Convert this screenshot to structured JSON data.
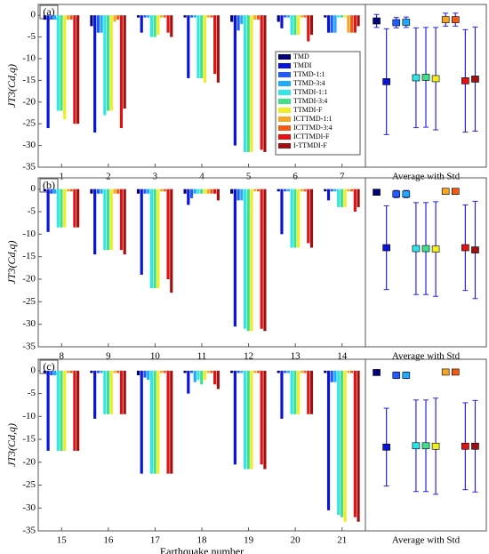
{
  "chart_data": [
    {
      "type": "bar",
      "panel_label": "(a)",
      "ylabel": "JT3(Cd,q)",
      "categories": [
        "1",
        "2",
        "3",
        "4",
        "5",
        "6",
        "7"
      ],
      "ylim": [
        -35,
        2.5
      ],
      "yticks": [
        0,
        -5,
        -10,
        -15,
        -20,
        -25,
        -30,
        -35
      ],
      "series": [
        {
          "name": "TMD",
          "color": "#00007a",
          "values": [
            -1,
            -2.5,
            -0.5,
            -0.5,
            -1.5,
            -1.5,
            -0.5
          ]
        },
        {
          "name": "TMDI",
          "color": "#0a14d8",
          "values": [
            -26,
            -27,
            -4,
            -14.5,
            -30,
            -3,
            -4
          ]
        },
        {
          "name": "TTMD-1:1",
          "color": "#1e5cff",
          "values": [
            -1,
            -4,
            -0.5,
            -0.5,
            -3.5,
            -0.5,
            -4
          ]
        },
        {
          "name": "TTMD-3:4",
          "color": "#1eaaff",
          "values": [
            -1,
            -4,
            -0.5,
            -0.5,
            -2,
            -0.5,
            -4
          ]
        },
        {
          "name": "TTMDI-1:1",
          "color": "#2ee6e6",
          "values": [
            -22,
            -23,
            -5,
            -14.5,
            -31.5,
            -4.5,
            -0.5
          ]
        },
        {
          "name": "TTMDI-3:4",
          "color": "#3ee08a",
          "values": [
            -22,
            -22,
            -5,
            -14.5,
            -31.5,
            -4.5,
            -0.5
          ]
        },
        {
          "name": "TTMDI-F",
          "color": "#eeee22",
          "values": [
            -24,
            -22,
            -4.5,
            -15.5,
            -31.5,
            -4.5,
            -0.5
          ]
        },
        {
          "name": "ICTTMD-1:1",
          "color": "#f5a623",
          "values": [
            -1,
            -1.5,
            -0.5,
            -0.5,
            -1,
            -0.5,
            -4
          ]
        },
        {
          "name": "ICTTMD-3:4",
          "color": "#f25a14",
          "values": [
            -1,
            -1,
            -0.5,
            -0.5,
            -1,
            -0.5,
            -4
          ]
        },
        {
          "name": "ICTTMDI-F",
          "color": "#e01212",
          "values": [
            -25,
            -26,
            -4,
            -13.5,
            -31,
            -6,
            -4
          ]
        },
        {
          "name": "I-TTMDI-F",
          "color": "#9e1010",
          "values": [
            -25,
            -21.5,
            -5,
            -15.5,
            -31.5,
            -4.5,
            -2.5
          ]
        }
      ],
      "average": {
        "label": "Average with Std",
        "values": [
          -1.3,
          -15.3,
          -1.7,
          -1.6,
          -14.4,
          -14.3,
          -14.6,
          -1.0,
          -1.0,
          -15.1,
          -14.7
        ],
        "std": [
          1.5,
          12.2,
          1.2,
          1.2,
          11.5,
          11.5,
          11.8,
          1.5,
          1.5,
          11.8,
          12
        ]
      }
    },
    {
      "type": "bar",
      "panel_label": "(b)",
      "ylabel": "JT3(Cd,q)",
      "categories": [
        "8",
        "9",
        "10",
        "11",
        "12",
        "13",
        "14"
      ],
      "ylim": [
        -35,
        2.5
      ],
      "yticks": [
        0,
        -5,
        -10,
        -15,
        -20,
        -25,
        -30,
        -35
      ],
      "series": [
        {
          "color": "#00007a",
          "values": [
            -0.5,
            -1,
            -1,
            -1,
            -1,
            -0.5,
            -0.5
          ]
        },
        {
          "color": "#0a14d8",
          "values": [
            -9.5,
            -14.5,
            -19,
            -3.5,
            -30.5,
            -10,
            -2.5
          ]
        },
        {
          "color": "#1e5cff",
          "values": [
            -1,
            -1,
            -1,
            -2,
            -2.5,
            -0.5,
            -0.5
          ]
        },
        {
          "color": "#1eaaff",
          "values": [
            -1,
            -1,
            -1,
            -1,
            -2.5,
            -0.5,
            -0.5
          ]
        },
        {
          "color": "#2ee6e6",
          "values": [
            -8.5,
            -13.5,
            -22,
            -1,
            -31,
            -13,
            -4
          ]
        },
        {
          "color": "#3ee08a",
          "values": [
            -8.5,
            -13.5,
            -22,
            -1,
            -31.5,
            -13,
            -4
          ]
        },
        {
          "color": "#eeee22",
          "values": [
            -8.5,
            -13.5,
            -22,
            -1,
            -31.5,
            -13,
            -4
          ]
        },
        {
          "color": "#f5a623",
          "values": [
            -0.5,
            -1,
            -0.5,
            -1,
            -0.5,
            -0.5,
            -0.5
          ]
        },
        {
          "color": "#f25a14",
          "values": [
            -0.5,
            -1,
            -0.5,
            -1,
            -0.5,
            -0.5,
            -0.5
          ]
        },
        {
          "color": "#e01212",
          "values": [
            -8.5,
            -13.5,
            -20,
            -1,
            -31,
            -12,
            -5
          ]
        },
        {
          "color": "#9e1010",
          "values": [
            -8.5,
            -14.5,
            -23,
            -2.5,
            -31.5,
            -13,
            -4
          ]
        }
      ],
      "average": {
        "label": "Average with Std",
        "values": [
          -0.7,
          -13,
          -1.1,
          -1.1,
          -13.2,
          -13.2,
          -13.3,
          -0.5,
          -0.5,
          -13,
          -13.5
        ],
        "std": [
          0.5,
          9.3,
          0.8,
          0.8,
          10.2,
          10.2,
          10.5,
          0.3,
          0.3,
          9.5,
          10.8
        ]
      }
    },
    {
      "type": "bar",
      "panel_label": "(c)",
      "ylabel": "JT3(Cd,q)",
      "xlabel": "Earthquake number",
      "categories": [
        "15",
        "16",
        "17",
        "18",
        "19",
        "20",
        "21"
      ],
      "ylim": [
        -35,
        2.5
      ],
      "yticks": [
        0,
        -5,
        -10,
        -15,
        -20,
        -25,
        -30,
        -35
      ],
      "series": [
        {
          "color": "#00007a",
          "values": [
            -0.5,
            -0.5,
            -1,
            -0.5,
            -0.5,
            -0.5,
            -0.5
          ]
        },
        {
          "color": "#0a14d8",
          "values": [
            -17.5,
            -10.5,
            -22.5,
            -5,
            -20.5,
            -10.5,
            -30.5
          ]
        },
        {
          "color": "#1e5cff",
          "values": [
            -1,
            -0.5,
            -1.5,
            -0.5,
            -0.5,
            -0.5,
            -2.5
          ]
        },
        {
          "color": "#1eaaff",
          "values": [
            -1,
            -0.5,
            -2,
            -2.5,
            -0.5,
            -0.5,
            -2.5
          ]
        },
        {
          "color": "#2ee6e6",
          "values": [
            -17.5,
            -9.5,
            -22.5,
            -2,
            -21.5,
            -9.5,
            -31.5
          ]
        },
        {
          "color": "#3ee08a",
          "values": [
            -17.5,
            -9.5,
            -22.5,
            -3,
            -21.5,
            -9.5,
            -32
          ]
        },
        {
          "color": "#eeee22",
          "values": [
            -17.5,
            -9.5,
            -22.5,
            -2,
            -21.5,
            -9.5,
            -33
          ]
        },
        {
          "color": "#f5a623",
          "values": [
            -0.5,
            -0.5,
            -0.5,
            -0.5,
            -0.5,
            -0.5,
            -0.5
          ]
        },
        {
          "color": "#f25a14",
          "values": [
            -0.5,
            -0.5,
            -0.5,
            -0.5,
            -0.5,
            -0.5,
            -0.5
          ]
        },
        {
          "color": "#e01212",
          "values": [
            -17.5,
            -9.5,
            -22.5,
            -3,
            -20.5,
            -9.5,
            -32
          ]
        },
        {
          "color": "#9e1010",
          "values": [
            -17.5,
            -9.5,
            -22.5,
            -4,
            -21.5,
            -9.5,
            -33
          ]
        }
      ],
      "average": {
        "label": "Average with Std",
        "values": [
          -0.4,
          -16.7,
          -1,
          -1,
          -16.4,
          -16.4,
          -16.5,
          -0.3,
          -0.3,
          -16.5,
          -16.5
        ],
        "std": [
          0.2,
          8.5,
          0.7,
          0.7,
          10,
          10,
          10.5,
          0.1,
          0.1,
          9.5,
          10
        ]
      }
    }
  ]
}
